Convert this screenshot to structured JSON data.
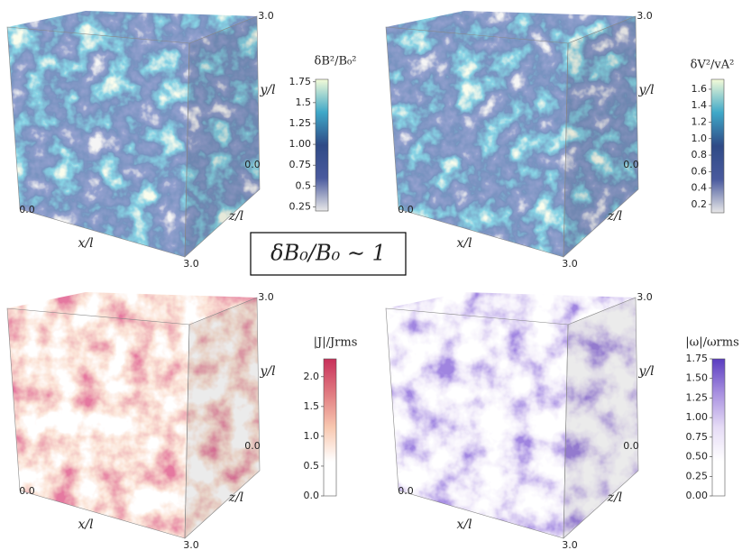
{
  "center_label": "δB₀/B₀ ∼ 1",
  "panels": [
    {
      "colorbar_label": "δB²/B₀²",
      "colorbar_lim": [
        0.2,
        1.78
      ],
      "colors": [
        "#e8e8e8",
        "#4a5a9e",
        "#2f4a86",
        "#3fa8c8",
        "#f4fbd8"
      ],
      "colorbar_ticks": [
        0.25,
        0.5,
        0.75,
        {
          "value": 1,
          "label": "1.00"
        },
        1.25,
        1.5,
        1.75
      ],
      "axis_labels": [
        "3.0",
        "y/l",
        "0.0",
        "z/l",
        "0.0",
        "x/l",
        "3.0"
      ]
    },
    {
      "colorbar_label": "δV²/vA²",
      "colorbar_lim": [
        0.1,
        1.72
      ],
      "colors": [
        "#e8e8e8",
        "#4a5a9e",
        "#2f4a86",
        "#3fa8c8",
        "#f4fbd8"
      ],
      "colorbar_ticks": [
        0.2,
        0.4,
        0.6,
        0.8,
        {
          "value": 1,
          "label": "1.0"
        },
        1.2,
        1.4,
        1.6
      ],
      "axis_labels": [
        "3.0",
        "y/l",
        "0.0",
        "z/l",
        "0.0",
        "x/l",
        "3.0"
      ]
    },
    {
      "colorbar_label": "|J|/Jrms",
      "colorbar_lim": [
        0,
        2.3
      ],
      "colors": [
        "#ffffff",
        "#ffffff",
        "#f8c8b0",
        "#e07a80",
        "#c8305a"
      ],
      "colorbar_ticks": [
        {
          "value": 0,
          "label": "0.0"
        },
        0.5,
        {
          "value": 1,
          "label": "1.0"
        },
        1.5,
        {
          "value": 2,
          "label": "2.0"
        }
      ],
      "axis_labels": [
        "3.0",
        "y/l",
        "0.0",
        "z/l",
        "0.0",
        "x/l",
        "3.0"
      ]
    },
    {
      "colorbar_label": "|ω|/ωrms",
      "colorbar_lim": [
        0,
        1.75
      ],
      "colors": [
        "#ffffff",
        "#ffffff",
        "#e6dcf6",
        "#a890e0",
        "#5a3cc0"
      ],
      "colorbar_ticks": [
        {
          "value": 0,
          "label": "0.00"
        },
        0.25,
        {
          "value": 0.5,
          "label": "0.50"
        },
        0.75,
        {
          "value": 1,
          "label": "1.00"
        },
        1.25,
        {
          "value": 1.5,
          "label": "1.50"
        },
        1.75
      ],
      "axis_labels": [
        "3.0",
        "y/l",
        "0.0",
        "z/l",
        "0.0",
        "x/l",
        "3.0"
      ]
    }
  ]
}
